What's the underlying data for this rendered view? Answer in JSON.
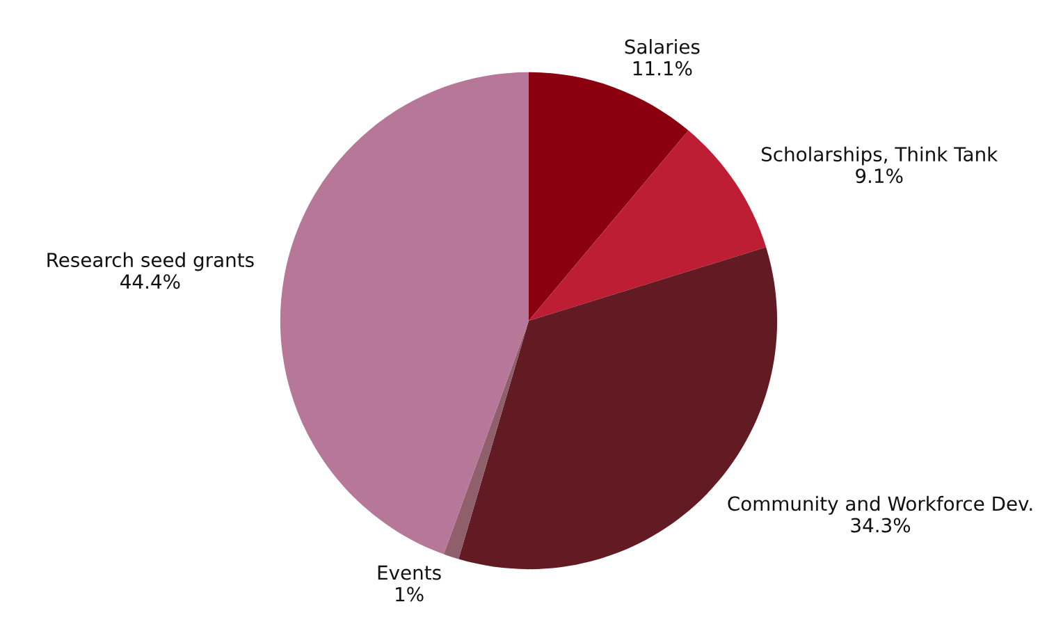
{
  "chart_data": {
    "type": "pie",
    "categories": [
      "Salaries",
      "Scholarships, Think Tank",
      "Community and Workforce Dev.",
      "Events",
      "Research seed grants"
    ],
    "values": [
      11.1,
      9.1,
      34.3,
      1,
      44.4
    ],
    "value_labels": [
      "11.1%",
      "9.1%",
      "34.3%",
      "1%",
      "44.4%"
    ],
    "colors": [
      "#8b000e",
      "#be1e34",
      "#621b22",
      "#8f5f6b",
      "#b77798"
    ],
    "legend": false
  }
}
